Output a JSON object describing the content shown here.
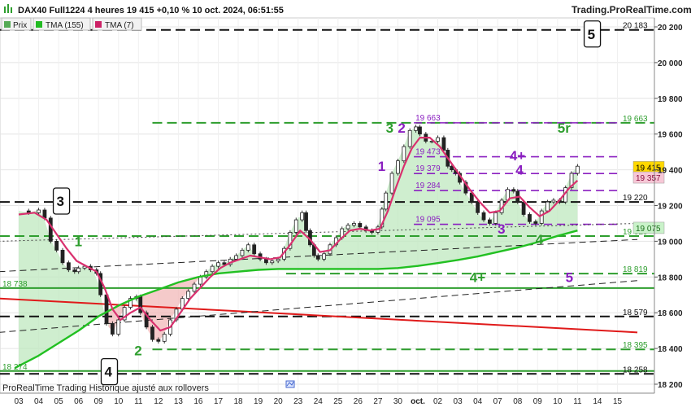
{
  "header": {
    "title": "DAX40 Full1224 4 heures 19 415 +0,10 % 10 oct. 2024, 06:51:55",
    "site": "Trading.ProRealTime.com"
  },
  "legend": [
    {
      "label": "Prix",
      "color": "#55aa55"
    },
    {
      "label": "TMA (155)",
      "color": "#22bb22"
    },
    {
      "label": "TMA (7)",
      "color": "#cc2266"
    }
  ],
  "footer": {
    "text": "ProRealTime Trading Historique ajusté aux rollovers"
  },
  "colors": {
    "green_level": "#2e9e2e",
    "black_level": "#111111",
    "purple": "#8a1fc0",
    "pink": "#d9306e",
    "red": "#e01a1a",
    "bright_green": "#22c022"
  },
  "chart_data": {
    "type": "line",
    "ylim": [
      18200,
      20250
    ],
    "x_categories": [
      "03",
      "04",
      "05",
      "06",
      "09",
      "10",
      "11",
      "12",
      "13",
      "16",
      "17",
      "18",
      "19",
      "20",
      "23",
      "24",
      "25",
      "26",
      "27",
      "30",
      "oct.",
      "02",
      "03",
      "04",
      "07",
      "08",
      "09",
      "10",
      "11",
      "14",
      "15"
    ],
    "y_ticks": [
      "20 200",
      "20 000",
      "19 800",
      "19 600",
      "19 400",
      "19 200",
      "19 000",
      "18 800",
      "18 600",
      "18 400",
      "18 200"
    ],
    "y_tick_values": [
      20200,
      20000,
      19800,
      19600,
      19400,
      19200,
      19000,
      18800,
      18600,
      18400,
      18200
    ],
    "price": [
      [
        0,
        19170
      ],
      [
        0.5,
        19160
      ],
      [
        1,
        19175
      ],
      [
        1.3,
        19130
      ],
      [
        1.6,
        19000
      ],
      [
        1.9,
        18950
      ],
      [
        2.2,
        18880
      ],
      [
        2.5,
        18840
      ],
      [
        2.8,
        18830
      ],
      [
        3.0,
        18850
      ],
      [
        3.3,
        18860
      ],
      [
        3.6,
        18840
      ],
      [
        3.9,
        18820
      ],
      [
        4.1,
        18700
      ],
      [
        4.4,
        18540
      ],
      [
        4.7,
        18480
      ],
      [
        5.0,
        18560
      ],
      [
        5.3,
        18630
      ],
      [
        5.6,
        18680
      ],
      [
        5.9,
        18690
      ],
      [
        6.1,
        18600
      ],
      [
        6.4,
        18520
      ],
      [
        6.7,
        18450
      ],
      [
        7.0,
        18440
      ],
      [
        7.3,
        18480
      ],
      [
        7.6,
        18560
      ],
      [
        7.9,
        18620
      ],
      [
        8.2,
        18680
      ],
      [
        8.5,
        18720
      ],
      [
        8.8,
        18760
      ],
      [
        9.1,
        18800
      ],
      [
        9.4,
        18830
      ],
      [
        9.7,
        18860
      ],
      [
        10.0,
        18880
      ],
      [
        10.3,
        18870
      ],
      [
        10.6,
        18900
      ],
      [
        10.9,
        18920
      ],
      [
        11.2,
        18950
      ],
      [
        11.5,
        18980
      ],
      [
        11.8,
        18930
      ],
      [
        12.1,
        18900
      ],
      [
        12.4,
        18880
      ],
      [
        12.7,
        18890
      ],
      [
        13.0,
        18900
      ],
      [
        13.3,
        18960
      ],
      [
        13.6,
        19050
      ],
      [
        13.9,
        19120
      ],
      [
        14.2,
        19160
      ],
      [
        14.4,
        19060
      ],
      [
        14.6,
        18980
      ],
      [
        14.8,
        18920
      ],
      [
        15.0,
        18900
      ],
      [
        15.3,
        18930
      ],
      [
        15.6,
        18980
      ],
      [
        15.9,
        19020
      ],
      [
        16.2,
        19070
      ],
      [
        16.5,
        19090
      ],
      [
        16.8,
        19100
      ],
      [
        17.1,
        19080
      ],
      [
        17.4,
        19060
      ],
      [
        17.7,
        19050
      ],
      [
        18.0,
        19080
      ],
      [
        18.2,
        19180
      ],
      [
        18.4,
        19270
      ],
      [
        18.7,
        19380
      ],
      [
        19.0,
        19450
      ],
      [
        19.3,
        19530
      ],
      [
        19.6,
        19620
      ],
      [
        19.9,
        19640
      ],
      [
        20.1,
        19600
      ],
      [
        20.4,
        19560
      ],
      [
        20.7,
        19560
      ],
      [
        21.0,
        19580
      ],
      [
        21.3,
        19510
      ],
      [
        21.5,
        19420
      ],
      [
        21.7,
        19400
      ],
      [
        21.9,
        19380
      ],
      [
        22.1,
        19330
      ],
      [
        22.4,
        19270
      ],
      [
        22.7,
        19220
      ],
      [
        23.0,
        19160
      ],
      [
        23.3,
        19120
      ],
      [
        23.6,
        19100
      ],
      [
        23.9,
        19160
      ],
      [
        24.2,
        19230
      ],
      [
        24.5,
        19290
      ],
      [
        24.8,
        19280
      ],
      [
        25.0,
        19220
      ],
      [
        25.3,
        19150
      ],
      [
        25.6,
        19110
      ],
      [
        25.9,
        19100
      ],
      [
        26.2,
        19170
      ],
      [
        26.5,
        19220
      ],
      [
        26.8,
        19230
      ],
      [
        27.1,
        19220
      ],
      [
        27.4,
        19300
      ],
      [
        27.7,
        19380
      ],
      [
        28.0,
        19420
      ]
    ],
    "tma155": [
      [
        -0.2,
        18290
      ],
      [
        1,
        18360
      ],
      [
        2,
        18430
      ],
      [
        3,
        18500
      ],
      [
        4,
        18580
      ],
      [
        5,
        18640
      ],
      [
        6,
        18690
      ],
      [
        7,
        18730
      ],
      [
        8,
        18770
      ],
      [
        9,
        18800
      ],
      [
        10,
        18820
      ],
      [
        11,
        18830
      ],
      [
        12,
        18840
      ],
      [
        13,
        18845
      ],
      [
        14,
        18845
      ],
      [
        15,
        18845
      ],
      [
        16,
        18845
      ],
      [
        17,
        18845
      ],
      [
        18,
        18845
      ],
      [
        19,
        18850
      ],
      [
        20,
        18862
      ],
      [
        21,
        18878
      ],
      [
        22,
        18895
      ],
      [
        23,
        18915
      ],
      [
        24,
        18940
      ],
      [
        25,
        18965
      ],
      [
        26,
        18995
      ],
      [
        27,
        19030
      ],
      [
        28,
        19060
      ]
    ],
    "tma7": [
      [
        0,
        19150
      ],
      [
        0.8,
        19160
      ],
      [
        1.4,
        19120
      ],
      [
        1.9,
        19040
      ],
      [
        2.4,
        18960
      ],
      [
        2.9,
        18890
      ],
      [
        3.4,
        18860
      ],
      [
        3.9,
        18830
      ],
      [
        4.3,
        18740
      ],
      [
        4.7,
        18620
      ],
      [
        5.1,
        18560
      ],
      [
        5.6,
        18600
      ],
      [
        6.1,
        18630
      ],
      [
        6.6,
        18560
      ],
      [
        7.1,
        18500
      ],
      [
        7.6,
        18520
      ],
      [
        8.1,
        18600
      ],
      [
        8.6,
        18680
      ],
      [
        9.1,
        18740
      ],
      [
        9.6,
        18800
      ],
      [
        10.1,
        18850
      ],
      [
        10.6,
        18880
      ],
      [
        11.1,
        18900
      ],
      [
        11.6,
        18920
      ],
      [
        12.1,
        18910
      ],
      [
        12.6,
        18900
      ],
      [
        13.1,
        18910
      ],
      [
        13.6,
        18980
      ],
      [
        14.1,
        19060
      ],
      [
        14.6,
        19010
      ],
      [
        15.1,
        18940
      ],
      [
        15.6,
        18950
      ],
      [
        16.1,
        19010
      ],
      [
        16.6,
        19060
      ],
      [
        17.1,
        19070
      ],
      [
        17.6,
        19060
      ],
      [
        18.1,
        19070
      ],
      [
        18.5,
        19170
      ],
      [
        18.9,
        19300
      ],
      [
        19.3,
        19420
      ],
      [
        19.7,
        19520
      ],
      [
        20.1,
        19580
      ],
      [
        20.6,
        19580
      ],
      [
        21.1,
        19530
      ],
      [
        21.6,
        19450
      ],
      [
        22.1,
        19370
      ],
      [
        22.6,
        19290
      ],
      [
        23.1,
        19220
      ],
      [
        23.6,
        19160
      ],
      [
        24.1,
        19170
      ],
      [
        24.6,
        19240
      ],
      [
        25.1,
        19250
      ],
      [
        25.6,
        19190
      ],
      [
        26.1,
        19140
      ],
      [
        26.6,
        19170
      ],
      [
        27.1,
        19230
      ],
      [
        27.6,
        19300
      ],
      [
        28.0,
        19340
      ]
    ],
    "green_levels": [
      {
        "value": 19663,
        "label": "19 663",
        "x0": 6.7
      },
      {
        "value": 19029,
        "label": "19 029",
        "x0": 0
      },
      {
        "value": 18819,
        "label": "18 819",
        "x0": 13.4
      },
      {
        "value": 18738,
        "label": "18 738",
        "x0": 0,
        "solid": true
      },
      {
        "value": 18395,
        "label": "18 395",
        "x0": 6.7
      },
      {
        "value": 18274,
        "label": "18 274",
        "x0": 0,
        "solid": true
      }
    ],
    "black_levels": [
      {
        "value": 20183,
        "label": "20 183",
        "x0": 0
      },
      {
        "value": 19220,
        "label": "19 220",
        "x0": 0
      },
      {
        "value": 18579,
        "label": "18 579",
        "x0": 0
      },
      {
        "value": 18258,
        "label": "18 258",
        "x0": 0
      }
    ],
    "purple_levels": [
      {
        "value": 19663,
        "label": "19 663",
        "x0": 19.8,
        "x1": 30.0
      },
      {
        "value": 19473,
        "label": "19 473",
        "x0": 19.8,
        "x1": 30.0
      },
      {
        "value": 19379,
        "label": "19 379",
        "x0": 19.8,
        "x1": 30.0
      },
      {
        "value": 19284,
        "label": "19 284",
        "x0": 19.8,
        "x1": 30.0
      },
      {
        "value": 19095,
        "label": "19 095",
        "x0": 19.8,
        "x1": 30.0
      }
    ],
    "trend_lines": [
      {
        "color": "#e01a1a",
        "width": 2,
        "dash": false,
        "from": [
          -1,
          18680
        ],
        "to": [
          31,
          18490
        ]
      },
      {
        "color": "#222222",
        "width": 1,
        "dash": true,
        "from": [
          -1,
          18830
        ],
        "to": [
          31,
          19010
        ]
      },
      {
        "color": "#222222",
        "width": 1,
        "dash": true,
        "from": [
          -1,
          18490
        ],
        "to": [
          31,
          18780
        ]
      },
      {
        "color": "#444444",
        "width": 1,
        "dash": "dot",
        "from": [
          -1,
          19000
        ],
        "to": [
          31,
          19100
        ]
      }
    ],
    "right_labels": [
      {
        "value": 19415,
        "label": "19 415",
        "bg": "#ffd800",
        "fg": "#000000"
      },
      {
        "value": 19357,
        "label": "19 357",
        "bg": "#f7c7d6",
        "fg": "#8a1040"
      },
      {
        "value": 19075,
        "label": "19 075",
        "bg": "#c9f2c9",
        "fg": "#1a6e1a"
      }
    ],
    "wave_labels": [
      {
        "text": "5",
        "x": 28.7,
        "y": 20160,
        "color": "#111111",
        "boxed": true
      },
      {
        "text": "3",
        "x": 2.1,
        "y": 19225,
        "color": "#111111",
        "boxed": true
      },
      {
        "text": "4",
        "x": 4.5,
        "y": 18270,
        "color": "#111111",
        "boxed": true
      },
      {
        "text": "3",
        "x": 18.6,
        "y": 19635,
        "color": "#2e9e2e"
      },
      {
        "text": "2",
        "x": 19.2,
        "y": 19635,
        "color": "#8a1fc0"
      },
      {
        "text": "1",
        "x": 18.2,
        "y": 19420,
        "color": "#8a1fc0"
      },
      {
        "text": "5r",
        "x": 27.2,
        "y": 19635,
        "color": "#2e9e2e"
      },
      {
        "text": "4+",
        "x": 24.8,
        "y": 19480,
        "color": "#8a1fc0"
      },
      {
        "text": "4",
        "x": 25.1,
        "y": 19400,
        "color": "#8a1fc0"
      },
      {
        "text": "3",
        "x": 24.2,
        "y": 19070,
        "color": "#8a1fc0"
      },
      {
        "text": "4",
        "x": 26.1,
        "y": 19010,
        "color": "#2e9e2e"
      },
      {
        "text": "1",
        "x": 3.0,
        "y": 19000,
        "color": "#2e9e2e"
      },
      {
        "text": "2",
        "x": 6.0,
        "y": 18390,
        "color": "#2e9e2e"
      },
      {
        "text": "4+",
        "x": 22.8,
        "y": 18800,
        "color": "#2e9e2e"
      },
      {
        "text": "5",
        "x": 27.6,
        "y": 18800,
        "color": "#8a1fc0"
      }
    ]
  }
}
